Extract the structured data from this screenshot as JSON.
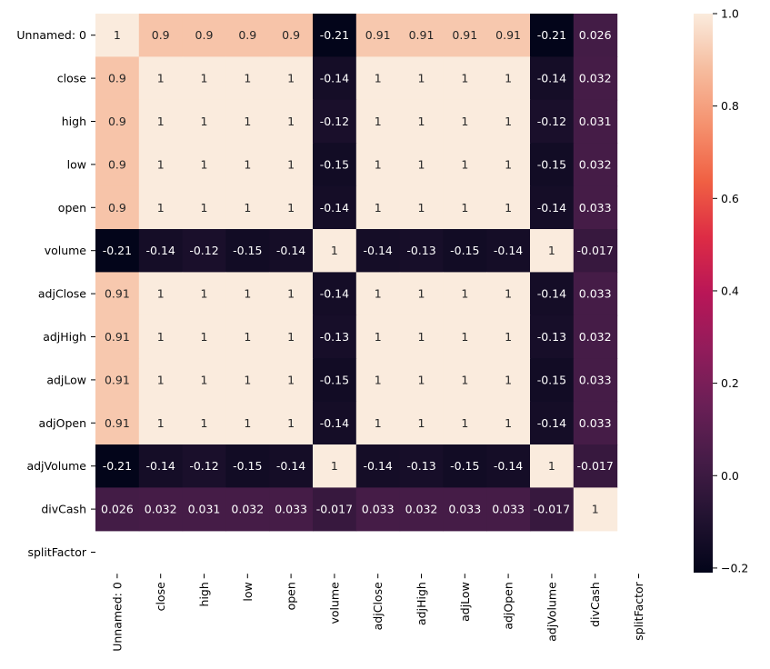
{
  "chart_data": {
    "type": "heatmap",
    "title": "",
    "xlabel": "",
    "ylabel": "",
    "rows": [
      "Unnamed: 0",
      "close",
      "high",
      "low",
      "open",
      "volume",
      "adjClose",
      "adjHigh",
      "adjLow",
      "adjOpen",
      "adjVolume",
      "divCash",
      "splitFactor"
    ],
    "columns": [
      "Unnamed: 0",
      "close",
      "high",
      "low",
      "open",
      "volume",
      "adjClose",
      "adjHigh",
      "adjLow",
      "adjOpen",
      "adjVolume",
      "divCash",
      "splitFactor"
    ],
    "values": [
      [
        1,
        0.9,
        0.9,
        0.9,
        0.9,
        -0.21,
        0.91,
        0.91,
        0.91,
        0.91,
        -0.21,
        0.026,
        null
      ],
      [
        0.9,
        1,
        1,
        1,
        1,
        -0.14,
        1,
        1,
        1,
        1,
        -0.14,
        0.032,
        null
      ],
      [
        0.9,
        1,
        1,
        1,
        1,
        -0.12,
        1,
        1,
        1,
        1,
        -0.12,
        0.031,
        null
      ],
      [
        0.9,
        1,
        1,
        1,
        1,
        -0.15,
        1,
        1,
        1,
        1,
        -0.15,
        0.032,
        null
      ],
      [
        0.9,
        1,
        1,
        1,
        1,
        -0.14,
        1,
        1,
        1,
        1,
        -0.14,
        0.033,
        null
      ],
      [
        -0.21,
        -0.14,
        -0.12,
        -0.15,
        -0.14,
        1,
        -0.14,
        -0.13,
        -0.15,
        -0.14,
        1,
        -0.017,
        null
      ],
      [
        0.91,
        1,
        1,
        1,
        1,
        -0.14,
        1,
        1,
        1,
        1,
        -0.14,
        0.033,
        null
      ],
      [
        0.91,
        1,
        1,
        1,
        1,
        -0.13,
        1,
        1,
        1,
        1,
        -0.13,
        0.032,
        null
      ],
      [
        0.91,
        1,
        1,
        1,
        1,
        -0.15,
        1,
        1,
        1,
        1,
        -0.15,
        0.033,
        null
      ],
      [
        0.91,
        1,
        1,
        1,
        1,
        -0.14,
        1,
        1,
        1,
        1,
        -0.14,
        0.033,
        null
      ],
      [
        -0.21,
        -0.14,
        -0.12,
        -0.15,
        -0.14,
        1,
        -0.14,
        -0.13,
        -0.15,
        -0.14,
        1,
        -0.017,
        null
      ],
      [
        0.026,
        0.032,
        0.031,
        0.032,
        0.033,
        -0.017,
        0.033,
        0.032,
        0.033,
        0.033,
        -0.017,
        1,
        null
      ],
      [
        null,
        null,
        null,
        null,
        null,
        null,
        null,
        null,
        null,
        null,
        null,
        null,
        null
      ]
    ],
    "colorbar": {
      "range": [
        -0.21,
        1.0
      ],
      "ticks": [
        -0.2,
        0.0,
        0.2,
        0.4,
        0.6,
        0.8,
        1.0
      ],
      "tick_labels": [
        "−0.2",
        "0.0",
        "0.2",
        "0.4",
        "0.6",
        "0.8",
        "1.0"
      ],
      "colormap": "rocket",
      "colormap_stops": [
        "#03051a",
        "#221331",
        "#451c47",
        "#6a1f56",
        "#921c5b",
        "#b91657",
        "#dd2c45",
        "#f06043",
        "#f5916e",
        "#f6bc9e",
        "#faebdd"
      ]
    },
    "annotations": true,
    "grid": false,
    "legend": "none"
  }
}
